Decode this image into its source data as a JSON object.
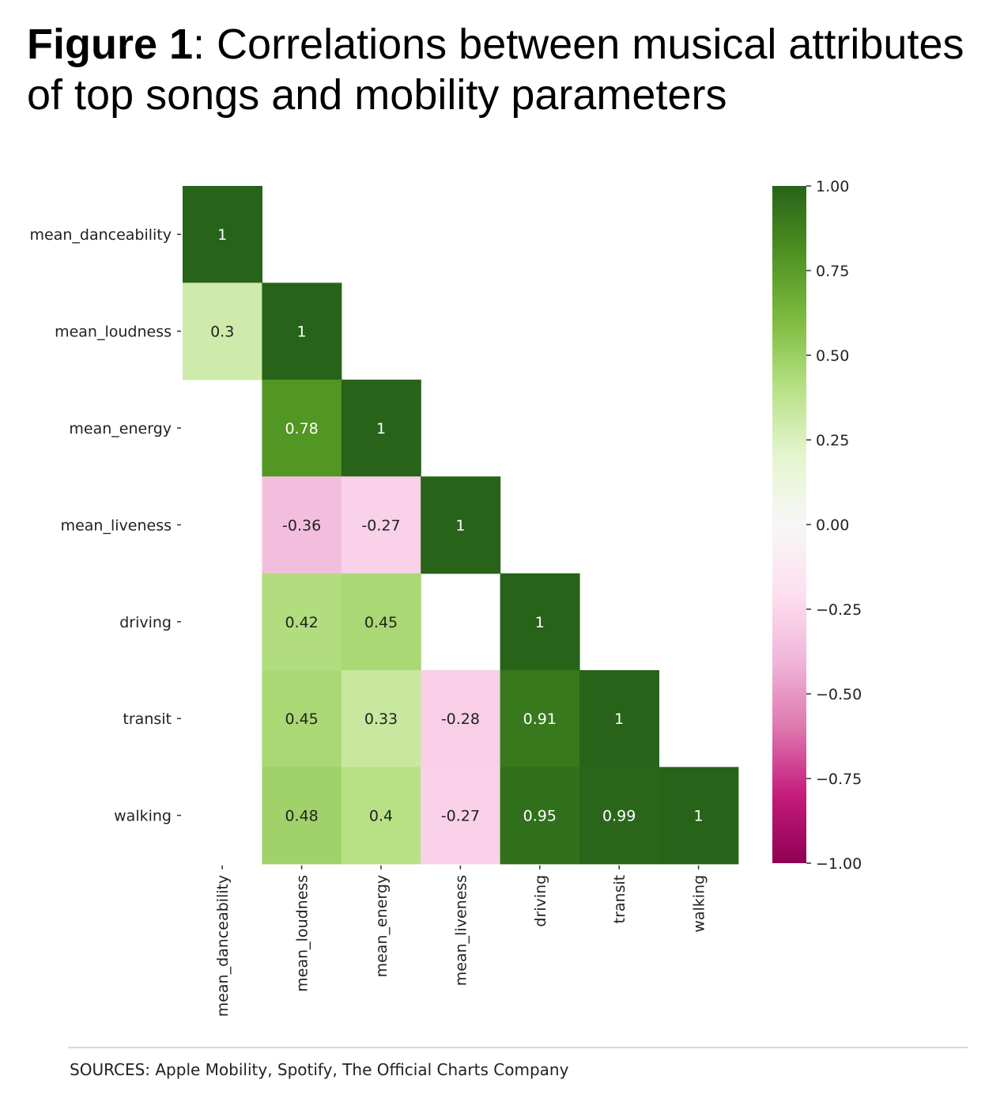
{
  "title": {
    "bold": "Figure 1",
    "rest": ": Correlations between musical attributes of top songs and mobility parameters"
  },
  "source": "SOURCES: Apple Mobility, Spotify, The Official Charts Company",
  "chart_data": {
    "type": "heatmap",
    "labels": [
      "mean_danceability",
      "mean_loudness",
      "mean_energy",
      "mean_liveness",
      "driving",
      "transit",
      "walking"
    ],
    "cells": [
      {
        "row": 0,
        "col": 0,
        "value": 1,
        "label": "1"
      },
      {
        "row": 1,
        "col": 0,
        "value": 0.3,
        "label": "0.3"
      },
      {
        "row": 1,
        "col": 1,
        "value": 1,
        "label": "1"
      },
      {
        "row": 2,
        "col": 1,
        "value": 0.78,
        "label": "0.78"
      },
      {
        "row": 2,
        "col": 2,
        "value": 1,
        "label": "1"
      },
      {
        "row": 3,
        "col": 1,
        "value": -0.36,
        "label": "-0.36"
      },
      {
        "row": 3,
        "col": 2,
        "value": -0.27,
        "label": "-0.27"
      },
      {
        "row": 3,
        "col": 3,
        "value": 1,
        "label": "1"
      },
      {
        "row": 4,
        "col": 1,
        "value": 0.42,
        "label": "0.42"
      },
      {
        "row": 4,
        "col": 2,
        "value": 0.45,
        "label": "0.45"
      },
      {
        "row": 4,
        "col": 4,
        "value": 1,
        "label": "1"
      },
      {
        "row": 5,
        "col": 1,
        "value": 0.45,
        "label": "0.45"
      },
      {
        "row": 5,
        "col": 2,
        "value": 0.33,
        "label": "0.33"
      },
      {
        "row": 5,
        "col": 3,
        "value": -0.28,
        "label": "-0.28"
      },
      {
        "row": 5,
        "col": 4,
        "value": 0.91,
        "label": "0.91"
      },
      {
        "row": 5,
        "col": 5,
        "value": 1,
        "label": "1"
      },
      {
        "row": 6,
        "col": 1,
        "value": 0.48,
        "label": "0.48"
      },
      {
        "row": 6,
        "col": 2,
        "value": 0.4,
        "label": "0.4"
      },
      {
        "row": 6,
        "col": 3,
        "value": -0.27,
        "label": "-0.27"
      },
      {
        "row": 6,
        "col": 4,
        "value": 0.95,
        "label": "0.95"
      },
      {
        "row": 6,
        "col": 5,
        "value": 0.99,
        "label": "0.99"
      },
      {
        "row": 6,
        "col": 6,
        "value": 1,
        "label": "1"
      }
    ],
    "colorbar": {
      "range": [
        -1,
        1
      ],
      "ticks": [
        1,
        0.75,
        0.5,
        0.25,
        0,
        -0.25,
        -0.5,
        -0.75,
        -1
      ],
      "tick_labels": [
        "1.00",
        "0.75",
        "0.50",
        "0.25",
        "0.00",
        "−0.25",
        "−0.50",
        "−0.75",
        "−1.00"
      ],
      "colors": [
        "#8e0152",
        "#c51b7d",
        "#de77ae",
        "#f1b6da",
        "#fde0ef",
        "#f7f7f7",
        "#e6f5d0",
        "#b8e186",
        "#7fbc41",
        "#4d9221",
        "#276419"
      ]
    }
  }
}
